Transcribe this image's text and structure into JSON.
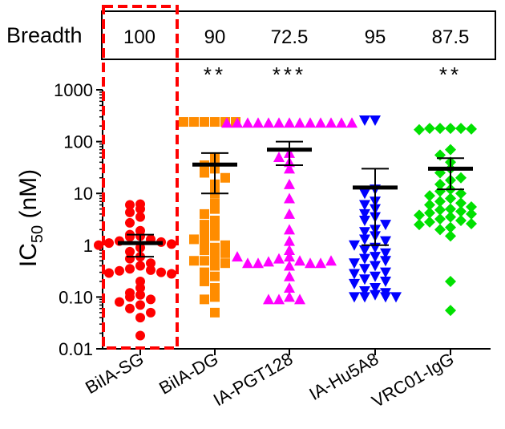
{
  "chart_data": {
    "type": "scatter",
    "title": "",
    "ylabel": {
      "main": "IC",
      "sub": "50",
      "unit": " (nM)"
    },
    "xlabel": "",
    "yscale": "log",
    "ylim": [
      0.01,
      1000
    ],
    "yticks": [
      {
        "value": 0.01,
        "label": "0.01"
      },
      {
        "value": 0.1,
        "label": "0.10"
      },
      {
        "value": 1,
        "label": "1"
      },
      {
        "value": 10,
        "label": "10"
      },
      {
        "value": 100,
        "label": "100"
      },
      {
        "value": 1000,
        "label": "1000"
      }
    ],
    "categories": [
      "BiIA-SG",
      "BiIA-DG",
      "IA-PGT128",
      "IA-Hu5A8",
      "VRC01-IgG"
    ],
    "breadth": {
      "label": "Breadth",
      "values": [
        "100",
        "90",
        "72.5",
        "95",
        "87.5"
      ]
    },
    "significance": [
      "",
      "**",
      "***",
      "",
      "**"
    ],
    "highlight_category": "BiIA-SG",
    "series": [
      {
        "category": "BiIA-SG",
        "marker": "circle",
        "color": "#ff0000",
        "geomean": 1.1,
        "ci": [
          0.6,
          1.6
        ],
        "values": [
          6.2,
          6.0,
          5.0,
          4.3,
          3.5,
          2.7,
          1.9,
          1.6,
          1.5,
          1.45,
          1.3,
          1.2,
          1.15,
          1.1,
          1.05,
          1.0,
          0.9,
          0.75,
          0.6,
          0.55,
          0.45,
          0.4,
          0.35,
          0.33,
          0.32,
          0.3,
          0.29,
          0.28,
          0.2,
          0.15,
          0.12,
          0.11,
          0.1,
          0.09,
          0.08,
          0.07,
          0.06,
          0.05,
          0.04,
          0.018
        ]
      },
      {
        "category": "BiIA-DG",
        "marker": "square",
        "color": "#ff8c00",
        "geomean": 36,
        "ci": [
          10,
          60
        ],
        "values": [
          240,
          240,
          240,
          240,
          240,
          240,
          50,
          38,
          35,
          30,
          25,
          20,
          15,
          10,
          6.5,
          5.0,
          4.0,
          3.0,
          2.5,
          2.0,
          1.8,
          1.5,
          1.2,
          1.0,
          0.9,
          0.8,
          0.7,
          0.6,
          0.5,
          0.45,
          0.4,
          0.3,
          0.25,
          0.2,
          0.15,
          0.1,
          0.09,
          0.05,
          0.5,
          1.3
        ]
      },
      {
        "category": "IA-PGT128",
        "marker": "triangle-up",
        "color": "#ff00ff",
        "geomean": 70,
        "ci": [
          35,
          100
        ],
        "values": [
          230,
          230,
          230,
          230,
          230,
          230,
          230,
          230,
          230,
          230,
          230,
          230,
          230,
          60,
          50,
          40,
          30,
          15,
          8,
          4,
          2.0,
          1.2,
          0.8,
          0.6,
          0.55,
          0.5,
          0.48,
          0.45,
          0.45,
          0.45,
          0.45,
          0.4,
          0.5,
          0.6,
          0.25,
          0.15,
          0.1,
          0.09,
          0.09,
          0.09
        ]
      },
      {
        "category": "IA-Hu5A8",
        "marker": "triangle-down",
        "color": "#0000ff",
        "geomean": 13,
        "ci": [
          1.0,
          30
        ],
        "values": [
          260,
          260,
          12,
          10,
          7.0,
          6.0,
          5.0,
          4.0,
          3.5,
          3.0,
          2.5,
          2.0,
          1.8,
          1.5,
          1.3,
          1.2,
          1.0,
          0.9,
          0.8,
          0.7,
          0.6,
          0.55,
          0.5,
          0.45,
          0.4,
          0.35,
          0.3,
          0.28,
          0.25,
          0.22,
          0.2,
          0.18,
          0.15,
          0.13,
          0.12,
          0.11,
          0.1,
          0.1,
          0.1,
          0.1
        ]
      },
      {
        "category": "VRC01-IgG",
        "marker": "diamond",
        "color": "#00e000",
        "geomean": 30,
        "ci": [
          12,
          48
        ],
        "values": [
          180,
          180,
          180,
          180,
          175,
          170,
          70,
          55,
          40,
          30,
          25,
          20,
          18,
          15,
          12,
          11,
          10,
          9,
          8,
          7,
          6.5,
          6,
          5.5,
          5,
          4.8,
          4.5,
          4.2,
          4,
          3.8,
          3.5,
          3.2,
          3,
          2.8,
          2.6,
          2.5,
          2.2,
          2,
          1.5,
          0.2,
          0.055
        ]
      }
    ]
  }
}
